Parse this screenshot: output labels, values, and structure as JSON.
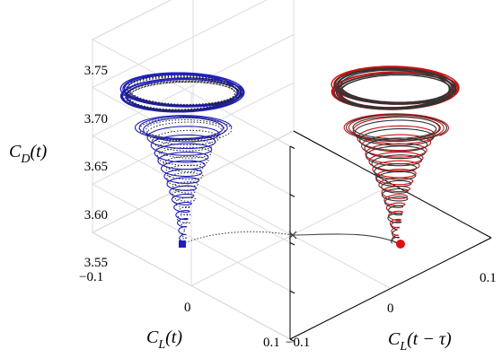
{
  "chart_data": {
    "type": "line",
    "projection": "3d",
    "grid": true,
    "axes": {
      "cl": {
        "label_main": "C",
        "label_sub": "L",
        "label_rest": "(t)",
        "ticks": [
          "−0.1",
          "0",
          "0.1"
        ],
        "range": [
          -0.1,
          0.1
        ]
      },
      "cl_delay": {
        "label_main": "C",
        "label_sub": "L",
        "label_rest": "(t − τ)",
        "ticks": [
          "−0.1",
          "0",
          "0.1"
        ],
        "range": [
          -0.1,
          0.1
        ]
      },
      "cd": {
        "label_main": "C",
        "label_sub": "D",
        "label_rest": "(t)",
        "ticks": [
          "3.55",
          "3.60",
          "3.65",
          "3.70",
          "3.75"
        ],
        "range": [
          3.55,
          3.75
        ]
      }
    },
    "series": [
      {
        "role": "trajectory-left",
        "color": "#1f1fbf",
        "style": "solid",
        "spiral": {
          "start_cd": 3.57,
          "end_cd": 3.725,
          "amp_start": 0.005,
          "amp_end": 0.06,
          "turns": 17
        }
      },
      {
        "role": "trajectory-left-dotted",
        "color": "#222222",
        "style": "dotted"
      },
      {
        "role": "trajectory-right",
        "color": "#cc1111",
        "style": "solid",
        "spiral": {
          "start_cd": 3.57,
          "end_cd": 3.725,
          "amp_start": 0.005,
          "amp_end": 0.06,
          "turns": 17
        }
      },
      {
        "role": "trajectory-right-dark",
        "color": "#333333",
        "style": "solid"
      }
    ],
    "markers": [
      {
        "symbol": "square",
        "color": "#1f1fbf",
        "cd": 3.57
      },
      {
        "symbol": "circle",
        "color": "#dd1111",
        "cd": 3.57
      },
      {
        "symbol": "cross",
        "color": "#333333",
        "cd": 3.57
      }
    ]
  }
}
